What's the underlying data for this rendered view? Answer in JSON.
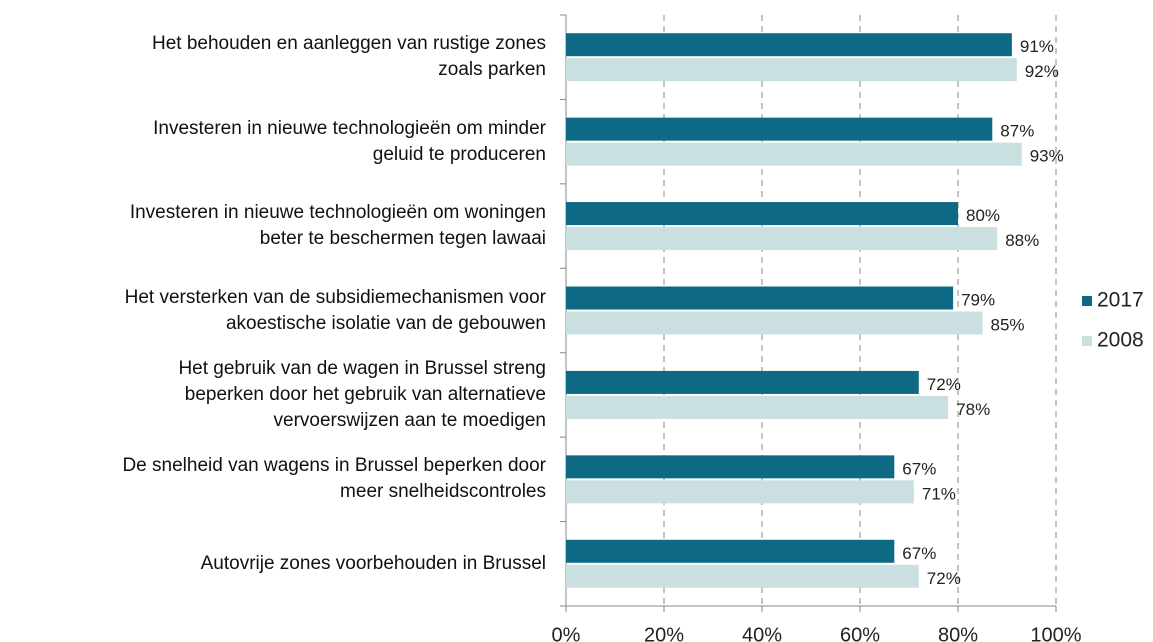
{
  "chart_data": {
    "type": "hbar",
    "categories": [
      "Het behouden en aanleggen van rustige zones\nzoals parken",
      "Investeren in nieuwe technologieën om minder\ngeluid te produceren",
      "Investeren in nieuwe technologieën om woningen\nbeter te beschermen tegen lawaai",
      "Het versterken van de subsidiemechanismen voor\nakoestische isolatie van de gebouwen",
      "Het gebruik van de wagen in Brussel streng\nbeperken door het gebruik van alternatieve\nvervoerswijzen aan te moedigen",
      "De snelheid van wagens in Brussel beperken door\nmeer snelheidscontroles",
      "Autovrije zones voorbehouden in Brussel"
    ],
    "series": [
      {
        "name": "2017",
        "color": "#0e6a84",
        "values": [
          91,
          87,
          80,
          79,
          72,
          67,
          67
        ],
        "value_labels": [
          "91%",
          "87%",
          "80%",
          "79%",
          "72%",
          "67%",
          "67%"
        ]
      },
      {
        "name": "2008",
        "color": "#c9dfe0",
        "values": [
          92,
          93,
          88,
          85,
          78,
          71,
          72
        ],
        "value_labels": [
          "92%",
          "93%",
          "88%",
          "85%",
          "78%",
          "71%",
          "72%"
        ]
      }
    ],
    "xlim": [
      0,
      100
    ],
    "xticks": [
      {
        "value": 0,
        "label": "0%"
      },
      {
        "value": 20,
        "label": "20%"
      },
      {
        "value": 40,
        "label": "40%"
      },
      {
        "value": 60,
        "label": "60%"
      },
      {
        "value": 80,
        "label": "80%"
      },
      {
        "value": 100,
        "label": "100%"
      }
    ],
    "grid": true,
    "legend": "right"
  }
}
